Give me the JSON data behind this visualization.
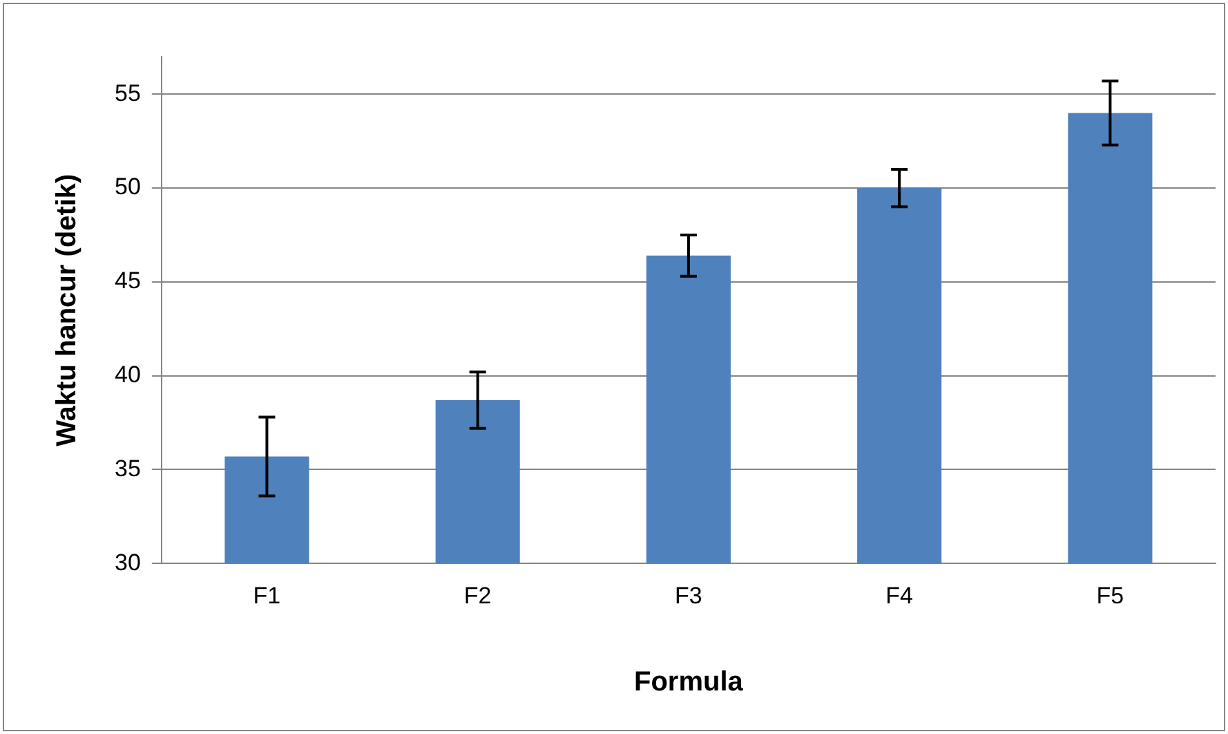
{
  "chart_data": {
    "type": "bar",
    "xlabel": "Formula",
    "ylabel": "Waktu hancur (detik)",
    "categories": [
      "F1",
      "F2",
      "F3",
      "F4",
      "F5"
    ],
    "values": [
      35.7,
      38.7,
      46.4,
      50.0,
      54.0
    ],
    "errors": [
      2.1,
      1.5,
      1.1,
      1.0,
      1.7
    ],
    "color": "#4f81bd",
    "ylim": [
      30,
      57
    ],
    "yticks": [
      30,
      35,
      40,
      45,
      50,
      55
    ],
    "grid": "y",
    "legend": false
  }
}
